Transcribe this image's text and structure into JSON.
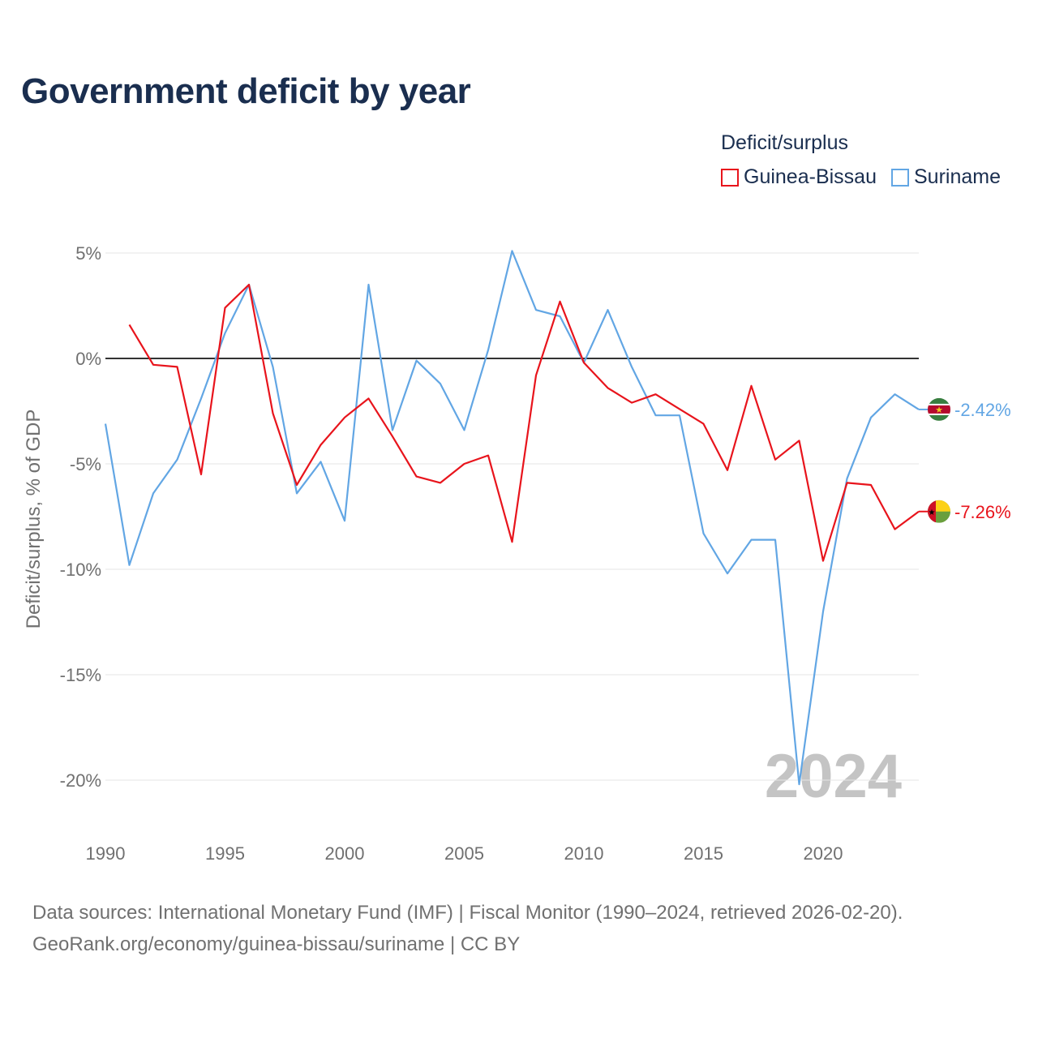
{
  "title": "Government deficit by year",
  "legend": {
    "title": "Deficit/surplus",
    "items": [
      {
        "label": "Guinea-Bissau",
        "color": "#e8141c"
      },
      {
        "label": "Suriname",
        "color": "#62a6e4"
      }
    ]
  },
  "year_watermark": "2024",
  "end_labels": {
    "guinea_bissau": "-7.26%",
    "suriname": "-2.42%"
  },
  "footer": {
    "line1": "Data sources: International Monetary Fund (IMF) | Fiscal Monitor (1990–2024, retrieved 2026-02-20).",
    "line2": "GeoRank.org/economy/guinea-bissau/suriname | CC BY"
  },
  "chart_data": {
    "type": "line",
    "title": "Government deficit by year",
    "xlabel": "",
    "ylabel": "Deficit/surplus, % of GDP",
    "xlim": [
      1990,
      2024
    ],
    "ylim": [
      -20,
      5
    ],
    "x_ticks": [
      1990,
      1995,
      2000,
      2005,
      2010,
      2015,
      2020
    ],
    "y_ticks": [
      {
        "value": 5,
        "label": "5%"
      },
      {
        "value": 0,
        "label": "0%"
      },
      {
        "value": -5,
        "label": "-5%"
      },
      {
        "value": -10,
        "label": "-10%"
      },
      {
        "value": -15,
        "label": "-15%"
      },
      {
        "value": -20,
        "label": "-20%"
      }
    ],
    "series": [
      {
        "name": "Guinea-Bissau",
        "color": "#e8141c",
        "x": [
          1991,
          1992,
          1993,
          1994,
          1995,
          1996,
          1997,
          1998,
          1999,
          2000,
          2001,
          2002,
          2003,
          2004,
          2005,
          2006,
          2007,
          2008,
          2009,
          2010,
          2011,
          2012,
          2013,
          2014,
          2015,
          2016,
          2017,
          2018,
          2019,
          2020,
          2021,
          2022,
          2023,
          2024
        ],
        "values": [
          1.6,
          -0.3,
          -0.4,
          -5.5,
          2.4,
          3.5,
          -2.6,
          -6.0,
          -4.1,
          -2.8,
          -1.9,
          -3.7,
          -5.6,
          -5.9,
          -5.0,
          -4.6,
          -8.7,
          -0.8,
          2.7,
          -0.2,
          -1.4,
          -2.1,
          -1.7,
          -2.4,
          -3.1,
          -5.3,
          -1.3,
          -4.8,
          -3.9,
          -9.6,
          -5.9,
          -6.0,
          -8.1,
          -7.26
        ]
      },
      {
        "name": "Suriname",
        "color": "#62a6e4",
        "x": [
          1990,
          1991,
          1992,
          1993,
          1994,
          1995,
          1996,
          1997,
          1998,
          1999,
          2000,
          2001,
          2002,
          2003,
          2004,
          2005,
          2006,
          2007,
          2008,
          2009,
          2010,
          2011,
          2012,
          2013,
          2014,
          2015,
          2016,
          2017,
          2018,
          2019,
          2020,
          2021,
          2022,
          2023,
          2024
        ],
        "values": [
          -3.1,
          -9.8,
          -6.4,
          -4.8,
          -1.9,
          1.2,
          3.5,
          -0.4,
          -6.4,
          -4.9,
          -7.7,
          3.5,
          -3.4,
          -0.1,
          -1.2,
          -3.4,
          0.4,
          5.1,
          2.3,
          2.0,
          -0.2,
          2.3,
          -0.4,
          -2.7,
          -2.7,
          -8.3,
          -10.2,
          -8.6,
          -8.6,
          -20.2,
          -12.0,
          -5.7,
          -2.8,
          -1.7,
          -2.42
        ]
      }
    ]
  }
}
